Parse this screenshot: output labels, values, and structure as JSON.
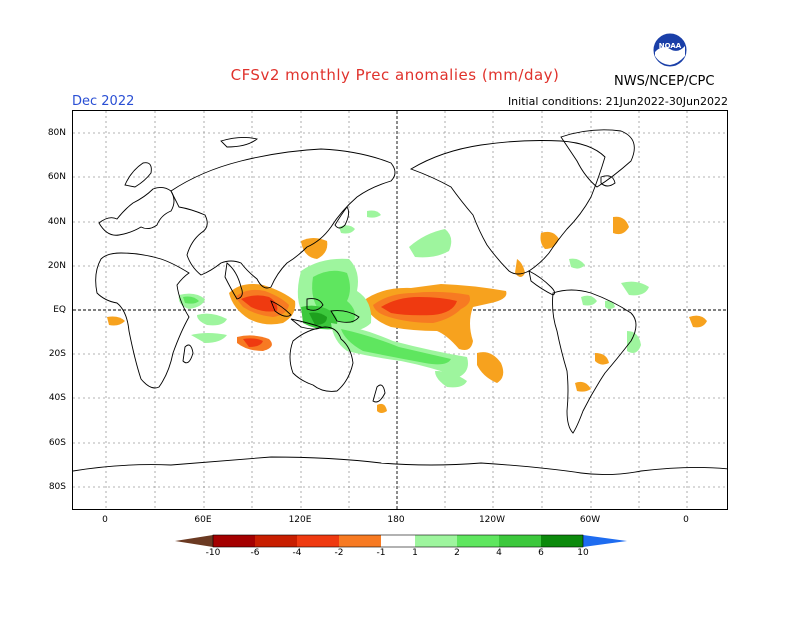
{
  "header": {
    "title": "CFSv2 monthly Prec anomalies (mm/day)",
    "month": "Dec 2022",
    "initial_conditions": "Initial conditions: 21Jun2022-30Jun2022",
    "agency": "NWS/NCEP/CPC",
    "logo_text": "NOAA"
  },
  "axes": {
    "lat_labels": [
      "80N",
      "60N",
      "40N",
      "20N",
      "EQ",
      "20S",
      "40S",
      "60S",
      "80S"
    ],
    "lon_labels": [
      "0",
      "60E",
      "120E",
      "180",
      "120W",
      "60W",
      "0"
    ]
  },
  "colorbar": {
    "labels": [
      "-10",
      "-6",
      "-4",
      "-2",
      "-1",
      "1",
      "2",
      "4",
      "6",
      "10"
    ],
    "colors": [
      "#6b3a22",
      "#a40000",
      "#c81e00",
      "#ef3a10",
      "#f77a22",
      "#f7a21e",
      "#ffffff",
      "#9ef59e",
      "#5fe65f",
      "#3cc83c",
      "#1ea01e",
      "#0c8a0c",
      "#1e6cf0"
    ]
  },
  "colors": {
    "dry_strong": "#ef3a10",
    "dry_medium": "#f77a22",
    "dry_light": "#f7a21e",
    "wet_light": "#9ef59e",
    "wet_medium": "#5fe65f",
    "wet_strong": "#3cc83c",
    "wet_very": "#1ea01e"
  }
}
